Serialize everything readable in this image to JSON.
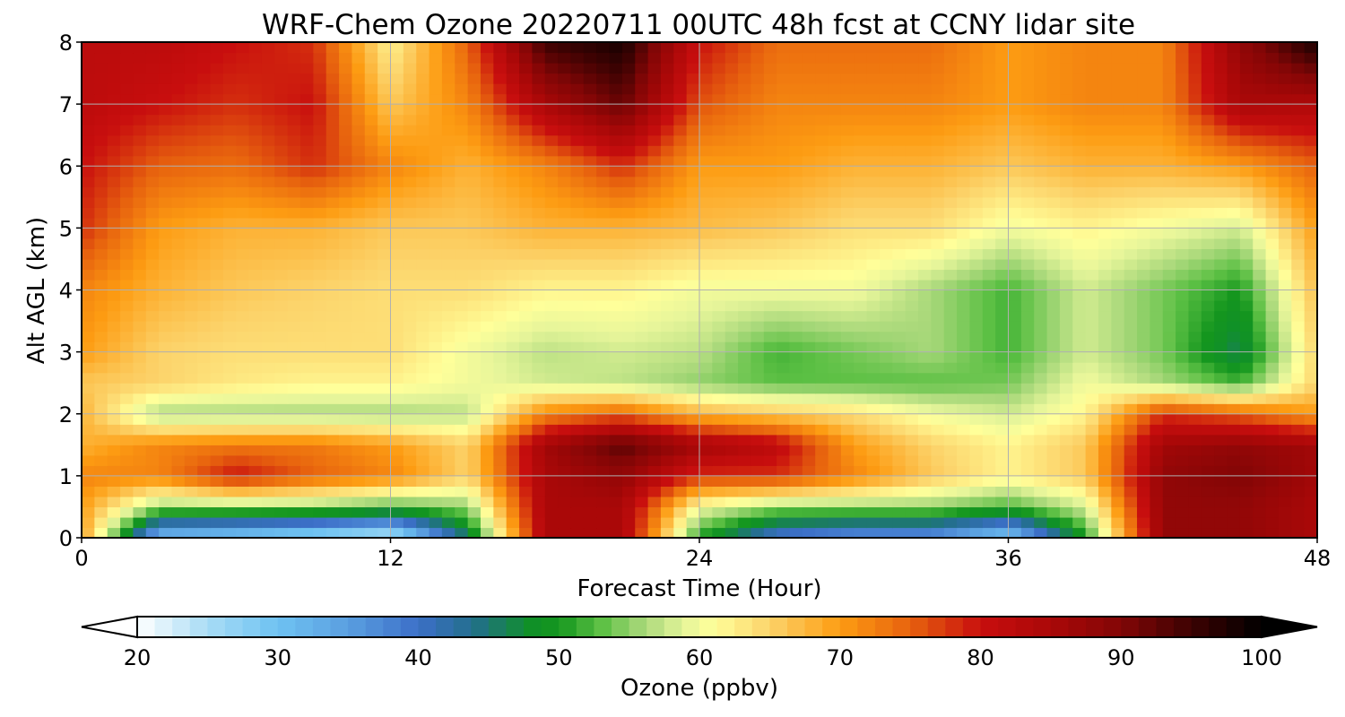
{
  "chart_data": {
    "type": "heatmap",
    "title": "WRF-Chem Ozone  20220711 00UTC 48h fcst at CCNY lidar site",
    "xlabel": "Forecast Time (Hour)",
    "ylabel": "Alt AGL (km)",
    "xlim": [
      0,
      48
    ],
    "ylim": [
      0,
      8
    ],
    "xticks": [
      0,
      12,
      24,
      36,
      48
    ],
    "yticks": [
      0,
      1,
      2,
      3,
      4,
      5,
      6,
      7,
      8
    ],
    "grid": true,
    "x_hours": [
      0,
      3,
      6,
      9,
      12,
      15,
      18,
      21,
      24,
      27,
      30,
      33,
      36,
      39,
      42,
      45,
      48
    ],
    "y_km": [
      0,
      0.5,
      1,
      1.5,
      2,
      2.5,
      3,
      4,
      5,
      6,
      7,
      8
    ],
    "values": [
      [
        70,
        30,
        28,
        25,
        22,
        45,
        85,
        85,
        50,
        38,
        35,
        35,
        28,
        50,
        88,
        88,
        85
      ],
      [
        70,
        55,
        55,
        55,
        52,
        55,
        85,
        85,
        60,
        55,
        55,
        55,
        52,
        58,
        88,
        88,
        85
      ],
      [
        72,
        72,
        80,
        75,
        72,
        65,
        85,
        88,
        78,
        78,
        72,
        66,
        62,
        66,
        88,
        90,
        86
      ],
      [
        68,
        72,
        73,
        73,
        70,
        65,
        86,
        93,
        86,
        82,
        70,
        65,
        62,
        66,
        86,
        88,
        86
      ],
      [
        68,
        56,
        56,
        56,
        56,
        57,
        72,
        75,
        68,
        66,
        64,
        60,
        58,
        62,
        78,
        75,
        70
      ],
      [
        66,
        65,
        63,
        62,
        62,
        60,
        58,
        57,
        55,
        53,
        53,
        53,
        54,
        60,
        56,
        52,
        65
      ],
      [
        70,
        65,
        64,
        64,
        64,
        60,
        57,
        58,
        57,
        52,
        54,
        56,
        52,
        58,
        54,
        46,
        65
      ],
      [
        72,
        68,
        66,
        65,
        64,
        64,
        62,
        62,
        60,
        60,
        60,
        56,
        52,
        58,
        54,
        50,
        67
      ],
      [
        78,
        70,
        68,
        68,
        66,
        66,
        68,
        68,
        67,
        66,
        64,
        64,
        60,
        62,
        60,
        58,
        70
      ],
      [
        80,
        75,
        74,
        78,
        72,
        68,
        72,
        78,
        70,
        70,
        68,
        68,
        66,
        68,
        68,
        70,
        75
      ],
      [
        82,
        80,
        78,
        80,
        66,
        72,
        85,
        92,
        76,
        72,
        72,
        72,
        70,
        72,
        72,
        85,
        84
      ],
      [
        82,
        82,
        80,
        78,
        62,
        75,
        95,
        98,
        80,
        74,
        74,
        74,
        70,
        72,
        72,
        88,
        98
      ]
    ],
    "colorbar": {
      "label": "Ozone  (ppbv)",
      "min": 20,
      "max": 100,
      "ticks": [
        20,
        30,
        40,
        50,
        60,
        70,
        80,
        90,
        100
      ],
      "extend": "both",
      "color_stops": [
        {
          "v": 20,
          "c": "#ffffff"
        },
        {
          "v": 25,
          "c": "#a8dcf5"
        },
        {
          "v": 30,
          "c": "#6ec2f2"
        },
        {
          "v": 35,
          "c": "#5a9fe0"
        },
        {
          "v": 40,
          "c": "#3c6fc8"
        },
        {
          "v": 44,
          "c": "#226f8a"
        },
        {
          "v": 48,
          "c": "#109028"
        },
        {
          "v": 50,
          "c": "#14961e"
        },
        {
          "v": 53,
          "c": "#5cc044"
        },
        {
          "v": 56,
          "c": "#a8d87a"
        },
        {
          "v": 59,
          "c": "#e6f59a"
        },
        {
          "v": 61,
          "c": "#ffff9a"
        },
        {
          "v": 65,
          "c": "#fcd36a"
        },
        {
          "v": 70,
          "c": "#fd9c12"
        },
        {
          "v": 75,
          "c": "#e7620e"
        },
        {
          "v": 80,
          "c": "#c80e0e"
        },
        {
          "v": 85,
          "c": "#aa0808"
        },
        {
          "v": 90,
          "c": "#820606"
        },
        {
          "v": 95,
          "c": "#3c0202"
        },
        {
          "v": 100,
          "c": "#000000"
        }
      ]
    }
  }
}
